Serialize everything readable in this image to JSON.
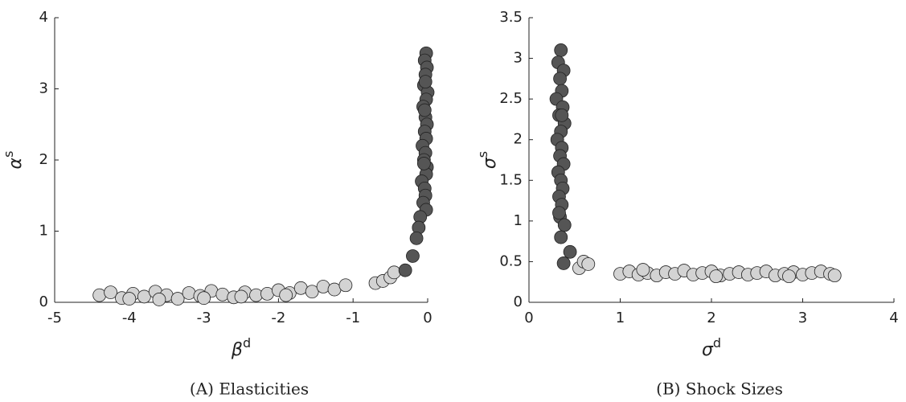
{
  "chart_data": [
    {
      "type": "scatter",
      "caption": "(A) Elasticities",
      "xlabel": {
        "base": "β",
        "sup": "d"
      },
      "ylabel": {
        "base": "α",
        "sup": "s"
      },
      "xlim": [
        -5,
        0
      ],
      "ylim": [
        0,
        4
      ],
      "xticks": [
        -5,
        -4,
        -3,
        -2,
        -1,
        0
      ],
      "yticks": [
        0,
        1,
        2,
        3,
        4
      ],
      "series": [
        {
          "color": "#d3d3d3",
          "x": [
            -4.4,
            -4.25,
            -4.1,
            -3.95,
            -3.8,
            -3.65,
            -3.5,
            -3.35,
            -3.2,
            -3.05,
            -2.9,
            -2.75,
            -2.6,
            -2.45,
            -2.3,
            -2.15,
            -2.0,
            -1.85,
            -1.7,
            -1.55,
            -1.4,
            -1.25,
            -1.1,
            -4.0,
            -3.6,
            -3.0,
            -2.5,
            -1.9,
            -0.7,
            -0.6,
            -0.5,
            -0.45
          ],
          "y": [
            0.1,
            0.14,
            0.06,
            0.12,
            0.08,
            0.15,
            0.1,
            0.05,
            0.13,
            0.09,
            0.16,
            0.11,
            0.07,
            0.14,
            0.1,
            0.12,
            0.17,
            0.13,
            0.2,
            0.15,
            0.22,
            0.18,
            0.24,
            0.05,
            0.04,
            0.06,
            0.08,
            0.1,
            0.27,
            0.3,
            0.35,
            0.42
          ]
        },
        {
          "color": "#555555",
          "x": [
            -0.02,
            -0.04,
            -0.01,
            -0.03,
            -0.05,
            0,
            -0.02,
            -0.06,
            -0.03,
            -0.01,
            -0.04,
            -0.02,
            -0.07,
            -0.03,
            -0.05,
            -0.01,
            -0.02,
            -0.08,
            -0.04,
            -0.03,
            -0.06,
            -0.02,
            -0.05,
            -0.1,
            -0.12,
            -0.15,
            -0.2,
            -0.3,
            -0.04,
            -0.03
          ],
          "y": [
            3.5,
            3.4,
            3.3,
            3.2,
            3.05,
            2.95,
            2.85,
            2.75,
            2.6,
            2.5,
            2.4,
            2.3,
            2.2,
            2.1,
            2.0,
            1.9,
            1.8,
            1.7,
            1.6,
            1.5,
            1.4,
            1.3,
            1.95,
            1.2,
            1.05,
            0.9,
            0.65,
            0.45,
            2.7,
            3.1
          ]
        }
      ]
    },
    {
      "type": "scatter",
      "caption": "(B) Shock Sizes",
      "xlabel": {
        "base": "σ",
        "sup": "d"
      },
      "ylabel": {
        "base": "σ",
        "sup": "s"
      },
      "xlim": [
        0,
        4
      ],
      "ylim": [
        0,
        3.5
      ],
      "xticks": [
        0,
        1,
        2,
        3,
        4
      ],
      "yticks": [
        0,
        0.5,
        1,
        1.5,
        2,
        2.5,
        3,
        3.5
      ],
      "series": [
        {
          "color": "#d3d3d3",
          "x": [
            1.0,
            1.1,
            1.2,
            1.3,
            1.4,
            1.5,
            1.6,
            1.7,
            1.8,
            1.9,
            2.0,
            2.1,
            2.2,
            2.3,
            2.4,
            2.5,
            2.6,
            2.7,
            2.8,
            2.9,
            3.0,
            3.1,
            3.2,
            3.3,
            3.35,
            1.25,
            2.05,
            2.85,
            0.55,
            0.6,
            0.65
          ],
          "y": [
            0.35,
            0.38,
            0.34,
            0.36,
            0.33,
            0.37,
            0.35,
            0.39,
            0.34,
            0.36,
            0.38,
            0.33,
            0.35,
            0.37,
            0.34,
            0.36,
            0.38,
            0.33,
            0.35,
            0.37,
            0.34,
            0.36,
            0.38,
            0.35,
            0.33,
            0.4,
            0.32,
            0.32,
            0.42,
            0.5,
            0.47
          ]
        },
        {
          "color": "#555555",
          "x": [
            0.35,
            0.32,
            0.38,
            0.34,
            0.36,
            0.3,
            0.37,
            0.33,
            0.39,
            0.35,
            0.31,
            0.36,
            0.34,
            0.38,
            0.32,
            0.35,
            0.37,
            0.33,
            0.36,
            0.34,
            0.39,
            0.35,
            0.38,
            0.45,
            0.36,
            0.33
          ],
          "y": [
            3.1,
            2.95,
            2.85,
            2.75,
            2.6,
            2.5,
            2.4,
            2.3,
            2.2,
            2.1,
            2.0,
            1.9,
            1.8,
            1.7,
            1.6,
            1.5,
            1.4,
            1.3,
            1.2,
            1.05,
            0.95,
            0.8,
            0.48,
            0.62,
            2.3,
            1.1
          ]
        }
      ]
    }
  ]
}
